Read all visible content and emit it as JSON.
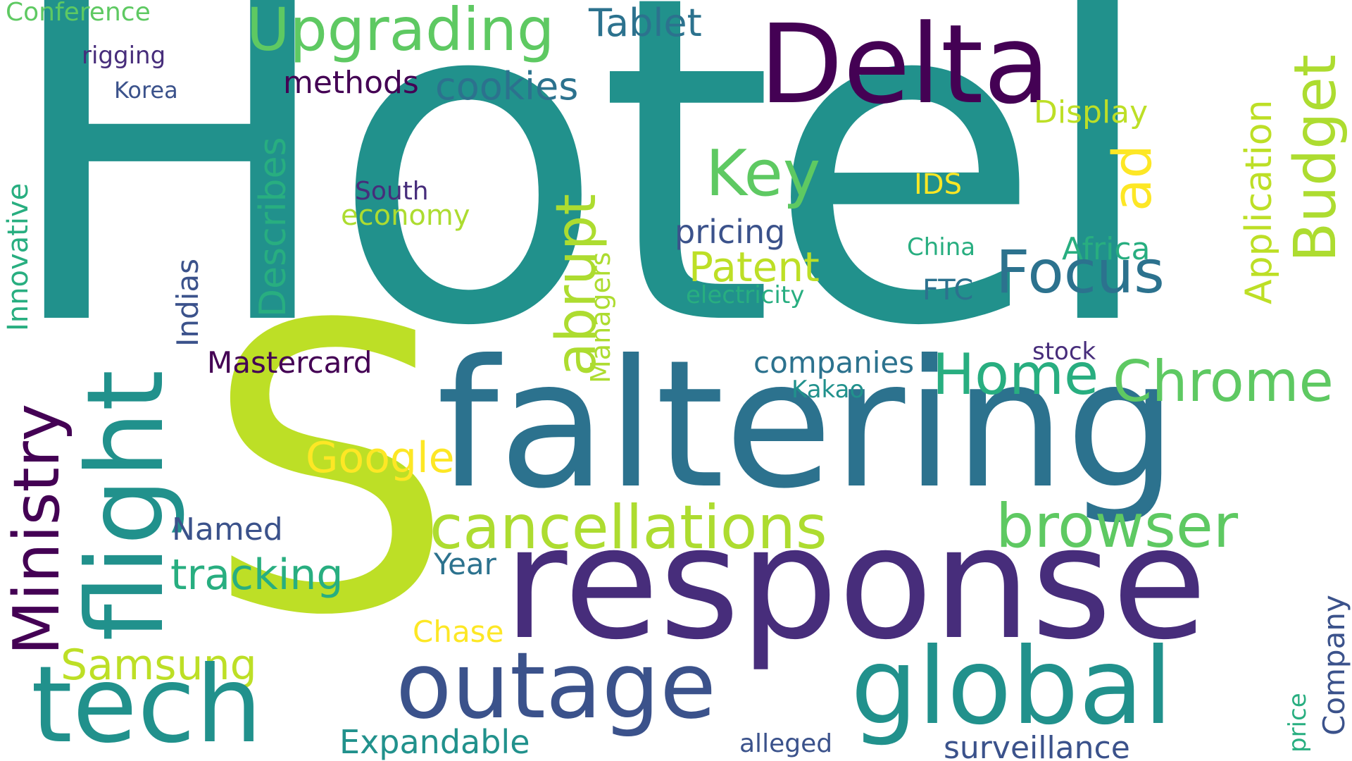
{
  "palette": {
    "dark_purple": "#440154",
    "indigo": "#472d7b",
    "blue_purple": "#3b528b",
    "steel_blue": "#2c728e",
    "teal": "#21918c",
    "teal_green": "#28ae80",
    "green": "#5ec962",
    "lime": "#addc30",
    "yellow_green": "#bddf26",
    "yellow": "#fde725"
  },
  "words": {
    "conference": "Conference",
    "rigging": "rigging",
    "korea": "Korea",
    "hotel": "Hotel",
    "upgrading": "Upgrading",
    "tablet": "Tablet",
    "delta": "Delta",
    "methods": "methods",
    "cookies": "cookies",
    "display": "Display",
    "application": "Application",
    "budget": "Budget",
    "describes": "Describes",
    "key": "Key",
    "ad": "ad",
    "south": "South",
    "economy": "economy",
    "ids": "IDS",
    "abrupt": "abrupt",
    "innovative": "Innovative",
    "pricing": "pricing",
    "china": "China",
    "africa": "Africa",
    "flight": "flight",
    "indias": "Indias",
    "managers": "Managers",
    "patent": "Patent",
    "focus": "Focus",
    "electricity": "electricity",
    "ftc": "FTC",
    "mastercard": "Mastercard",
    "stock": "stock",
    "companies": "companies",
    "ministry": "Ministry",
    "home": "Home",
    "chrome": "Chrome",
    "kakao": "Kakao",
    "s": "S",
    "faltering": "faltering",
    "google": "Google",
    "cancellations": "cancellations",
    "browser": "browser",
    "named": "Named",
    "tracking": "tracking",
    "year": "Year",
    "response": "response",
    "chase": "Chase",
    "samsung": "Samsung",
    "company": "Company",
    "tech": "tech",
    "outage": "outage",
    "global": "global",
    "price": "price",
    "expandable": "Expandable",
    "alleged": "alleged",
    "surveillance": "surveillance"
  }
}
